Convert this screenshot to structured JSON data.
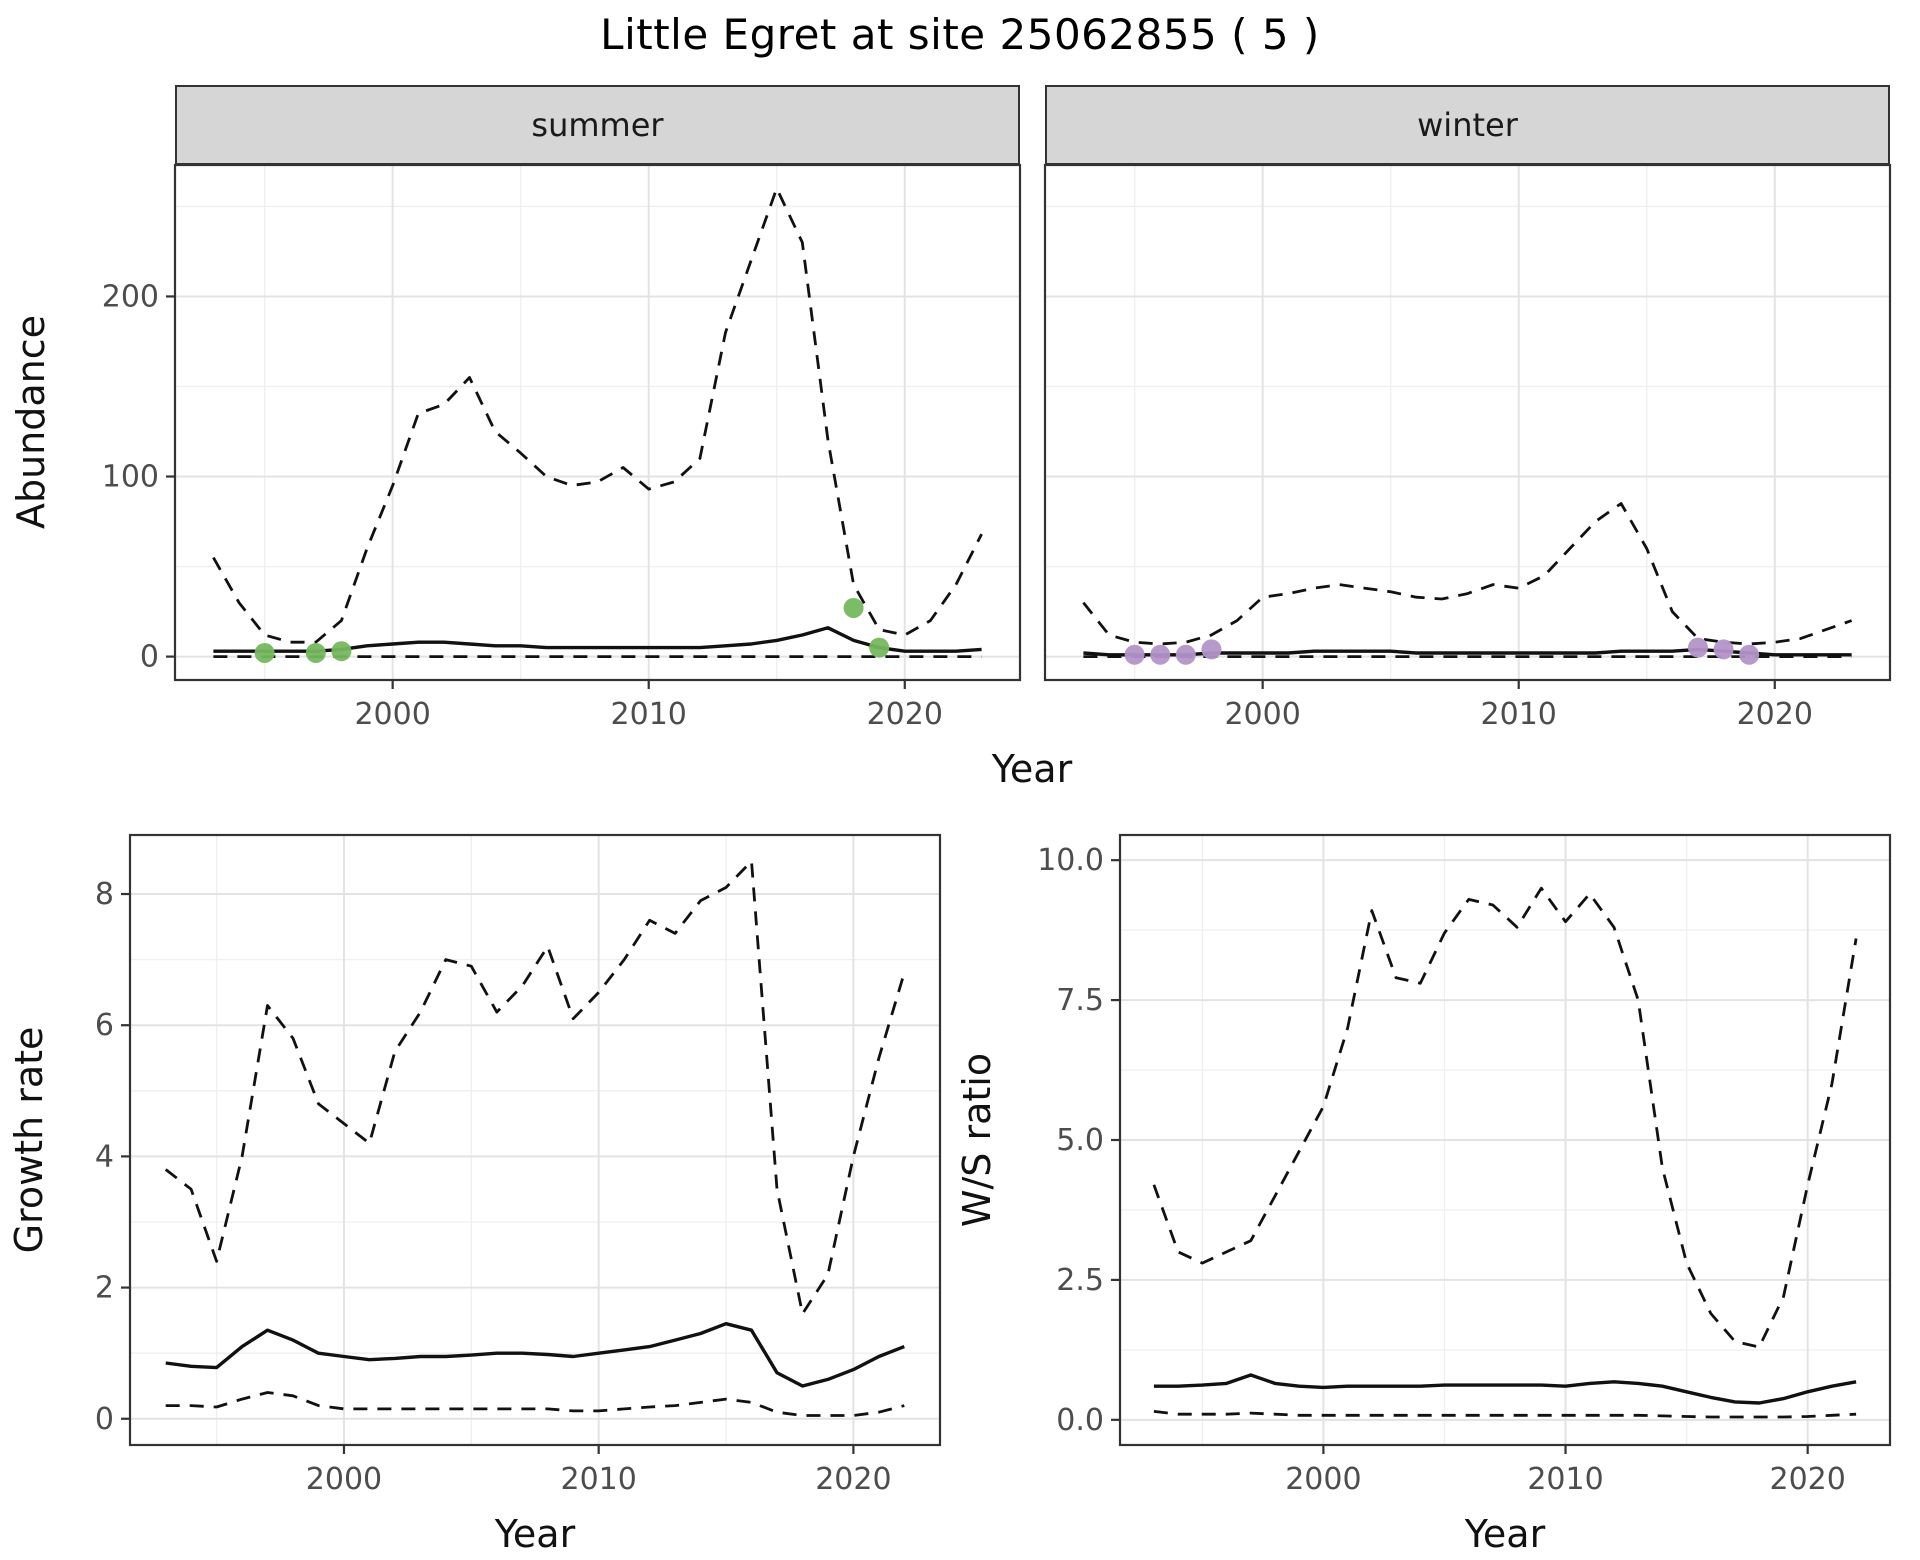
{
  "title": "Little Egret at site 25062855 ( 5 )",
  "facets": [
    "summer",
    "winter"
  ],
  "axes": {
    "abundance_ylabel": "Abundance",
    "top_xlabel": "Year",
    "growth_ylabel": "Growth rate",
    "growth_xlabel": "Year",
    "ws_ylabel": "W/S ratio",
    "ws_xlabel": "Year"
  },
  "style": {
    "background": "#ffffff",
    "panel_fill": "#ffffff",
    "strip_fill": "#d6d6d6",
    "grid_major": "#e3e3e3",
    "grid_minor": "#efefef",
    "line_color": "#111111",
    "border_color": "#333333",
    "tick_color": "#333333",
    "tick_text_color": "#4d4d4d",
    "summer_point_color": "#76b85e",
    "winter_point_color": "#b493c8"
  },
  "chart_data": [
    {
      "id": "abundance_summer",
      "type": "line",
      "facet": "summer",
      "xlabel": "Year",
      "ylabel": "Abundance",
      "xlim": [
        1991.5,
        2024.5
      ],
      "ylim": [
        -13,
        273
      ],
      "xticks": [
        2000,
        2010,
        2020
      ],
      "xtick_labels": [
        "2000",
        "2010",
        "2020"
      ],
      "yticks": [
        0,
        100,
        200
      ],
      "ytick_labels": [
        "0",
        "100",
        "200"
      ],
      "grid": true,
      "legend": "none",
      "x": [
        1993,
        1994,
        1995,
        1996,
        1997,
        1998,
        1999,
        2000,
        2001,
        2002,
        2003,
        2004,
        2005,
        2006,
        2007,
        2008,
        2009,
        2010,
        2011,
        2012,
        2013,
        2014,
        2015,
        2016,
        2017,
        2018,
        2019,
        2020,
        2021,
        2022,
        2023
      ],
      "series": [
        {
          "name": "upper_ci",
          "style": "dashed",
          "values": [
            55,
            30,
            12,
            8,
            8,
            20,
            60,
            95,
            135,
            140,
            155,
            125,
            113,
            100,
            95,
            97,
            105,
            93,
            97,
            110,
            180,
            220,
            260,
            230,
            120,
            40,
            15,
            12,
            20,
            40,
            68
          ]
        },
        {
          "name": "median",
          "style": "solid",
          "values": [
            3,
            3,
            3,
            3,
            3,
            4,
            6,
            7,
            8,
            8,
            7,
            6,
            6,
            5,
            5,
            5,
            5,
            5,
            5,
            5,
            6,
            7,
            9,
            12,
            16,
            9,
            5,
            3,
            3,
            3,
            4
          ]
        },
        {
          "name": "lower_ci",
          "style": "dashed",
          "values": [
            0,
            0,
            0,
            0,
            0,
            0,
            0,
            0,
            0,
            0,
            0,
            0,
            0,
            0,
            0,
            0,
            0,
            0,
            0,
            0,
            0,
            0,
            0,
            0,
            0,
            0,
            0,
            0,
            0,
            0,
            0
          ]
        }
      ],
      "points": {
        "name": "observed_counts",
        "color": "#76b85e",
        "x": [
          1995,
          1997,
          1998,
          2018,
          2019
        ],
        "y": [
          2,
          2,
          3,
          27,
          5
        ]
      }
    },
    {
      "id": "abundance_winter",
      "type": "line",
      "facet": "winter",
      "xlabel": "Year",
      "ylabel": "Abundance",
      "xlim": [
        1991.5,
        2024.5
      ],
      "ylim": [
        -13,
        273
      ],
      "xticks": [
        2000,
        2010,
        2020
      ],
      "xtick_labels": [
        "2000",
        "2010",
        "2020"
      ],
      "yticks": [
        0,
        100,
        200
      ],
      "ytick_labels": [
        "0",
        "100",
        "200"
      ],
      "grid": true,
      "legend": "none",
      "x": [
        1993,
        1994,
        1995,
        1996,
        1997,
        1998,
        1999,
        2000,
        2001,
        2002,
        2003,
        2004,
        2005,
        2006,
        2007,
        2008,
        2009,
        2010,
        2011,
        2012,
        2013,
        2014,
        2015,
        2016,
        2017,
        2018,
        2019,
        2020,
        2021,
        2022,
        2023
      ],
      "series": [
        {
          "name": "upper_ci",
          "style": "dashed",
          "values": [
            30,
            12,
            8,
            7,
            8,
            12,
            20,
            33,
            35,
            38,
            40,
            38,
            36,
            33,
            32,
            35,
            40,
            38,
            45,
            60,
            75,
            85,
            60,
            25,
            10,
            8,
            7,
            8,
            10,
            15,
            20
          ]
        },
        {
          "name": "median",
          "style": "solid",
          "values": [
            2,
            1,
            1,
            1,
            1,
            2,
            2,
            2,
            2,
            3,
            3,
            3,
            3,
            2,
            2,
            2,
            2,
            2,
            2,
            2,
            2,
            3,
            3,
            3,
            4,
            3,
            2,
            1,
            1,
            1,
            1
          ]
        },
        {
          "name": "lower_ci",
          "style": "dashed",
          "values": [
            0,
            0,
            0,
            0,
            0,
            0,
            0,
            0,
            0,
            0,
            0,
            0,
            0,
            0,
            0,
            0,
            0,
            0,
            0,
            0,
            0,
            0,
            0,
            0,
            0,
            0,
            0,
            0,
            0,
            0,
            0
          ]
        }
      ],
      "points": {
        "name": "observed_counts",
        "color": "#b493c8",
        "x": [
          1995,
          1996,
          1997,
          1998,
          2017,
          2018,
          2019
        ],
        "y": [
          1,
          1,
          1,
          4,
          5,
          4,
          1
        ]
      }
    },
    {
      "id": "growth_rate",
      "type": "line",
      "xlabel": "Year",
      "ylabel": "Growth rate",
      "xlim": [
        1991.6,
        2023.4
      ],
      "ylim": [
        -0.4,
        8.9
      ],
      "xticks": [
        2000,
        2010,
        2020
      ],
      "xtick_labels": [
        "2000",
        "2010",
        "2020"
      ],
      "yticks": [
        0,
        2,
        4,
        6,
        8
      ],
      "ytick_labels": [
        "0",
        "2",
        "4",
        "6",
        "8"
      ],
      "grid": true,
      "legend": "none",
      "x": [
        1993,
        1994,
        1995,
        1996,
        1997,
        1998,
        1999,
        2000,
        2001,
        2002,
        2003,
        2004,
        2005,
        2006,
        2007,
        2008,
        2009,
        2010,
        2011,
        2012,
        2013,
        2014,
        2015,
        2016,
        2017,
        2018,
        2019,
        2020,
        2021,
        2022
      ],
      "series": [
        {
          "name": "upper_ci",
          "style": "dashed",
          "values": [
            3.8,
            3.5,
            2.4,
            4.0,
            6.3,
            5.8,
            4.8,
            4.5,
            4.2,
            5.6,
            6.2,
            7.0,
            6.9,
            6.2,
            6.6,
            7.2,
            6.1,
            6.5,
            7.0,
            7.6,
            7.4,
            7.9,
            8.1,
            8.5,
            3.5,
            1.6,
            2.2,
            4.0,
            5.5,
            6.8
          ]
        },
        {
          "name": "median",
          "style": "solid",
          "values": [
            0.85,
            0.8,
            0.78,
            1.1,
            1.35,
            1.2,
            1.0,
            0.95,
            0.9,
            0.92,
            0.95,
            0.95,
            0.97,
            1.0,
            1.0,
            0.98,
            0.95,
            1.0,
            1.05,
            1.1,
            1.2,
            1.3,
            1.45,
            1.35,
            0.7,
            0.5,
            0.6,
            0.75,
            0.95,
            1.1
          ]
        },
        {
          "name": "lower_ci",
          "style": "dashed",
          "values": [
            0.2,
            0.2,
            0.18,
            0.3,
            0.4,
            0.35,
            0.2,
            0.15,
            0.15,
            0.15,
            0.15,
            0.15,
            0.15,
            0.15,
            0.15,
            0.15,
            0.12,
            0.12,
            0.15,
            0.18,
            0.2,
            0.25,
            0.3,
            0.25,
            0.1,
            0.05,
            0.05,
            0.05,
            0.1,
            0.2
          ]
        }
      ]
    },
    {
      "id": "ws_ratio",
      "type": "line",
      "xlabel": "Year",
      "ylabel": "W/S ratio",
      "xlim": [
        1991.6,
        2023.4
      ],
      "ylim": [
        -0.45,
        10.45
      ],
      "xticks": [
        2000,
        2010,
        2020
      ],
      "xtick_labels": [
        "2000",
        "2010",
        "2020"
      ],
      "yticks": [
        0,
        2.5,
        5,
        7.5,
        10
      ],
      "ytick_labels": [
        "0.0",
        "2.5",
        "5.0",
        "7.5",
        "10.0"
      ],
      "grid": true,
      "legend": "none",
      "x": [
        1993,
        1994,
        1995,
        1996,
        1997,
        1998,
        1999,
        2000,
        2001,
        2002,
        2003,
        2004,
        2005,
        2006,
        2007,
        2008,
        2009,
        2010,
        2011,
        2012,
        2013,
        2014,
        2015,
        2016,
        2017,
        2018,
        2019,
        2020,
        2021,
        2022
      ],
      "series": [
        {
          "name": "upper_ci",
          "style": "dashed",
          "values": [
            4.2,
            3.0,
            2.8,
            3.0,
            3.2,
            4.0,
            4.8,
            5.6,
            7.0,
            9.1,
            7.9,
            7.8,
            8.7,
            9.3,
            9.2,
            8.8,
            9.5,
            8.9,
            9.4,
            8.8,
            7.5,
            4.5,
            2.8,
            1.9,
            1.4,
            1.3,
            2.2,
            4.2,
            6.0,
            8.6
          ]
        },
        {
          "name": "median",
          "style": "solid",
          "values": [
            0.6,
            0.6,
            0.62,
            0.65,
            0.8,
            0.65,
            0.6,
            0.58,
            0.6,
            0.6,
            0.6,
            0.6,
            0.62,
            0.62,
            0.62,
            0.62,
            0.62,
            0.6,
            0.65,
            0.68,
            0.65,
            0.6,
            0.5,
            0.4,
            0.32,
            0.3,
            0.38,
            0.5,
            0.6,
            0.68
          ]
        },
        {
          "name": "lower_ci",
          "style": "dashed",
          "values": [
            0.15,
            0.1,
            0.1,
            0.1,
            0.12,
            0.1,
            0.08,
            0.08,
            0.08,
            0.08,
            0.08,
            0.08,
            0.08,
            0.08,
            0.08,
            0.08,
            0.08,
            0.08,
            0.08,
            0.08,
            0.08,
            0.07,
            0.06,
            0.05,
            0.05,
            0.05,
            0.05,
            0.06,
            0.08,
            0.1
          ]
        }
      ]
    }
  ]
}
